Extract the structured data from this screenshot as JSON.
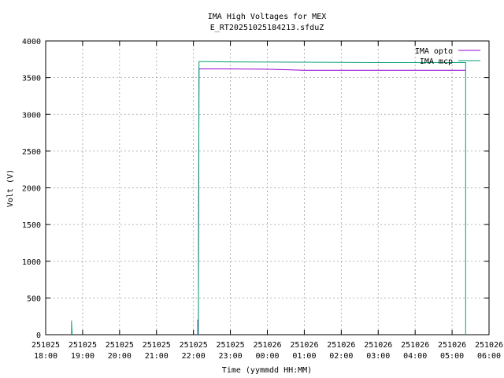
{
  "chart_data": {
    "type": "line",
    "title": "IMA High Voltages for MEX",
    "subtitle": "E_RT20251025184213.sfduZ",
    "x_label": "Time (yymmdd HH:MM)",
    "y_label": "Volt (V)",
    "xlim": [
      "251025 18:00",
      "251026 06:00"
    ],
    "xticks": [
      "251025 18:00",
      "251025 19:00",
      "251025 20:00",
      "251025 21:00",
      "251025 22:00",
      "251025 23:00",
      "251026 00:00",
      "251026 01:00",
      "251026 02:00",
      "251026 03:00",
      "251026 04:00",
      "251026 05:00",
      "251026 06:00"
    ],
    "ylim": [
      0,
      4000
    ],
    "yticks": [
      0,
      500,
      1000,
      1500,
      2000,
      2500,
      3000,
      3500,
      4000
    ],
    "grid": true,
    "legend": "top-right",
    "series": [
      {
        "name": "IMA opto",
        "color": "#9400d3",
        "x": [
          "251025 22:07",
          "251025 22:07",
          "251025 22:08",
          "251025 22:09",
          "251025 23:00",
          "251026 00:00",
          "251026 01:00",
          "251026 03:00",
          "251026 05:00",
          "251026 05:22"
        ],
        "values": [
          0,
          200,
          200,
          3620,
          3620,
          3615,
          3600,
          3600,
          3600,
          3600
        ]
      },
      {
        "name": "IMA mcp",
        "color": "#009e73",
        "x": [
          "251025 18:42",
          "251025 18:42",
          "251025 18:43",
          "251025 20:00",
          "251025 22:08",
          "251025 22:09",
          "251025 23:00",
          "251026 01:00",
          "251026 03:00",
          "251026 05:00",
          "251026 05:22",
          "251026 05:22"
        ],
        "values": [
          0,
          190,
          0,
          null,
          0,
          3720,
          3715,
          3710,
          3705,
          3705,
          3705,
          0
        ]
      }
    ]
  }
}
